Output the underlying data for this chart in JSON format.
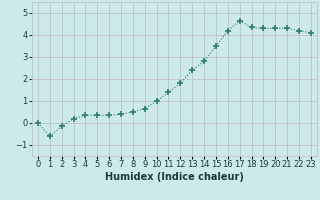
{
  "x": [
    0,
    1,
    2,
    3,
    4,
    5,
    6,
    7,
    8,
    9,
    10,
    11,
    12,
    13,
    14,
    15,
    16,
    17,
    18,
    19,
    20,
    21,
    22,
    23
  ],
  "y": [
    0.0,
    -0.6,
    -0.15,
    0.2,
    0.35,
    0.35,
    0.35,
    0.4,
    0.5,
    0.65,
    1.0,
    1.4,
    1.8,
    2.4,
    2.8,
    3.5,
    4.2,
    4.65,
    4.35,
    4.3,
    4.3,
    4.3,
    4.2,
    4.1
  ],
  "line_color": "#2e7d6e",
  "marker": "+",
  "markersize": 4,
  "markeredgewidth": 1.2,
  "linewidth": 0.8,
  "linestyle": ":",
  "bg_color": "#cceaea",
  "grid_color": "#c0b8b8",
  "xlabel": "Humidex (Indice chaleur)",
  "xlabel_fontsize": 7,
  "xlabel_color": "#1a3a3a",
  "tick_fontsize": 6,
  "tick_color": "#1a3a3a",
  "ylim": [
    -1.5,
    5.5
  ],
  "xlim": [
    -0.5,
    23.5
  ],
  "yticks": [
    -1,
    0,
    1,
    2,
    3,
    4,
    5
  ],
  "xtick_labels": [
    "0",
    "1",
    "2",
    "3",
    "4",
    "5",
    "6",
    "7",
    "8",
    "9",
    "10",
    "11",
    "12",
    "13",
    "14",
    "15",
    "16",
    "17",
    "18",
    "19",
    "20",
    "21",
    "22",
    "23"
  ]
}
